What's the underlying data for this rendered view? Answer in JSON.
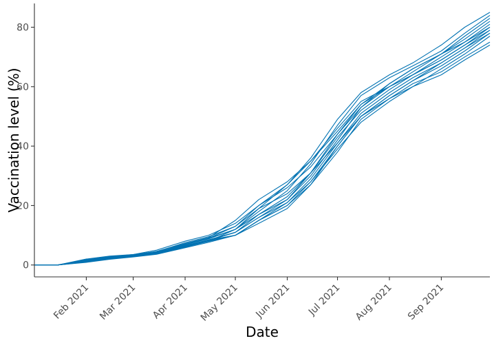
{
  "chart_data": {
    "type": "line",
    "title": "",
    "xlabel": "Date",
    "ylabel": "Vaccination level (%)",
    "x_range": [
      "2021-01-01",
      "2021-09-30"
    ],
    "ylim": [
      -4,
      88
    ],
    "x_ticks": [
      {
        "date": "2021-02-01",
        "label": "Feb 2021"
      },
      {
        "date": "2021-03-01",
        "label": "Mar 2021"
      },
      {
        "date": "2021-04-01",
        "label": "Apr 2021"
      },
      {
        "date": "2021-05-01",
        "label": "May 2021"
      },
      {
        "date": "2021-06-01",
        "label": "Jun 2021"
      },
      {
        "date": "2021-07-01",
        "label": "Jul 2021"
      },
      {
        "date": "2021-08-01",
        "label": "Aug 2021"
      },
      {
        "date": "2021-09-01",
        "label": "Sep 2021"
      }
    ],
    "y_ticks": [
      0,
      20,
      40,
      60,
      80
    ],
    "grid": false,
    "legend": "none",
    "line_color": "#0072B2",
    "dates": [
      "2021-01-01",
      "2021-01-15",
      "2021-02-01",
      "2021-02-15",
      "2021-03-01",
      "2021-03-15",
      "2021-04-01",
      "2021-04-15",
      "2021-05-01",
      "2021-05-15",
      "2021-06-01",
      "2021-06-15",
      "2021-07-01",
      "2021-07-15",
      "2021-08-01",
      "2021-08-15",
      "2021-09-01",
      "2021-09-15",
      "2021-09-30"
    ],
    "series": [
      {
        "values": [
          0,
          0,
          2.0,
          3.0,
          3.5,
          4.5,
          7.5,
          9.5,
          13,
          20,
          27,
          36,
          49,
          58,
          64,
          68,
          74,
          80,
          85
        ]
      },
      {
        "values": [
          0,
          0,
          1.5,
          2.5,
          3.2,
          4.2,
          7.0,
          9.0,
          12,
          18,
          25,
          34,
          47,
          57,
          63,
          67,
          72,
          78,
          84
        ]
      },
      {
        "values": [
          0,
          0,
          1.8,
          2.8,
          3.5,
          5.0,
          8.0,
          10.0,
          14,
          20,
          26,
          33,
          44,
          53,
          60,
          65,
          71,
          77,
          83
        ]
      },
      {
        "values": [
          0,
          0,
          1.2,
          2.2,
          3.0,
          4.0,
          6.5,
          8.5,
          11,
          17,
          23,
          31,
          44,
          54,
          61,
          66,
          71,
          76,
          82
        ]
      },
      {
        "values": [
          0,
          0,
          1.0,
          2.0,
          2.8,
          3.8,
          6.0,
          8.0,
          12,
          19,
          27,
          35,
          45,
          54,
          60,
          64,
          70,
          75,
          81
        ]
      },
      {
        "values": [
          0,
          0,
          1.4,
          2.6,
          3.3,
          4.6,
          7.2,
          9.2,
          15,
          22,
          28,
          35,
          46,
          55,
          60,
          64,
          69,
          74,
          80
        ]
      },
      {
        "values": [
          0,
          0,
          1.6,
          2.7,
          3.4,
          4.4,
          6.8,
          8.8,
          12,
          17,
          22,
          30,
          42,
          53,
          61,
          66,
          71,
          75,
          80
        ]
      },
      {
        "values": [
          0,
          0,
          1.1,
          2.3,
          3.1,
          4.1,
          6.2,
          8.2,
          11,
          16,
          22,
          31,
          43,
          52,
          59,
          64,
          69,
          74,
          79
        ]
      },
      {
        "values": [
          0,
          0,
          1.3,
          2.4,
          3.0,
          4.3,
          6.6,
          8.4,
          10,
          15,
          21,
          29,
          41,
          51,
          58,
          63,
          68,
          73,
          79
        ]
      },
      {
        "values": [
          0,
          0,
          1.5,
          2.5,
          3.2,
          4.2,
          7.0,
          9.0,
          13,
          19,
          24,
          31,
          41,
          50,
          57,
          62,
          68,
          73,
          78
        ]
      },
      {
        "values": [
          0,
          0,
          0.9,
          1.9,
          2.7,
          3.6,
          5.8,
          7.6,
          10,
          15,
          20,
          28,
          40,
          50,
          57,
          62,
          67,
          72,
          78
        ]
      },
      {
        "values": [
          0,
          0,
          1.2,
          2.3,
          3.0,
          4.0,
          6.4,
          8.2,
          11,
          16,
          21,
          28,
          39,
          48,
          55,
          60,
          66,
          71,
          77
        ]
      },
      {
        "values": [
          0,
          0,
          1.0,
          2.1,
          2.9,
          3.9,
          6.1,
          7.9,
          10,
          15,
          20,
          27,
          38,
          49,
          56,
          61,
          65,
          70,
          75
        ]
      },
      {
        "values": [
          0,
          0,
          1.4,
          2.5,
          3.1,
          4.1,
          6.3,
          8.1,
          10,
          14,
          19,
          27,
          40,
          50,
          56,
          60,
          64,
          69,
          74
        ]
      }
    ]
  }
}
